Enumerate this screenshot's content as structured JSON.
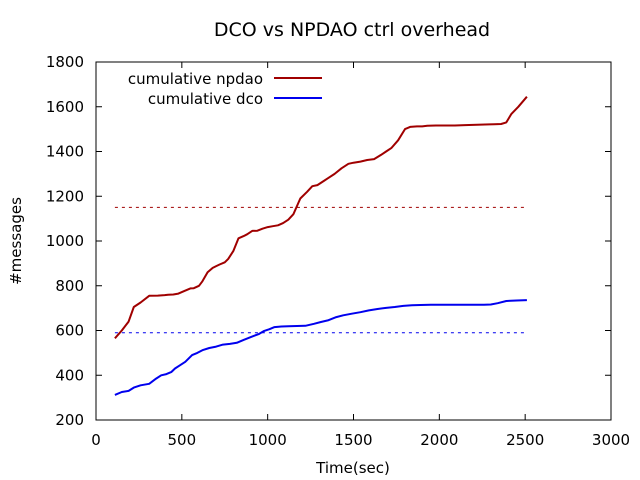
{
  "chart_data": {
    "type": "line",
    "title": "DCO vs NPDAO ctrl overhead",
    "xlabel": "Time(sec)",
    "ylabel": "#messages",
    "xlim": [
      0,
      3000
    ],
    "ylim": [
      200,
      1800
    ],
    "xticks": [
      0,
      500,
      1000,
      1500,
      2000,
      2500,
      3000
    ],
    "yticks": [
      200,
      400,
      600,
      800,
      1000,
      1200,
      1400,
      1600,
      1800
    ],
    "grid": false,
    "legend_position": "top-left",
    "series": [
      {
        "name": "cumulative npdao",
        "color": "#a00000",
        "style": "solid",
        "x": [
          110,
          150,
          190,
          220,
          260,
          310,
          360,
          400,
          420,
          450,
          480,
          510,
          550,
          570,
          600,
          620,
          650,
          680,
          700,
          720,
          750,
          770,
          800,
          830,
          860,
          880,
          910,
          940,
          970,
          1000,
          1030,
          1060,
          1090,
          1120,
          1150,
          1190,
          1230,
          1260,
          1290,
          1330,
          1350,
          1390,
          1430,
          1470,
          1500,
          1540,
          1580,
          1620,
          1660,
          1690,
          1720,
          1760,
          1800,
          1830,
          1870,
          1900,
          1930,
          1980,
          2030,
          2090,
          2150,
          2220,
          2290,
          2320,
          2360,
          2390,
          2420,
          2460,
          2510
        ],
        "y": [
          565,
          600,
          640,
          705,
          725,
          755,
          756,
          758,
          760,
          761,
          765,
          775,
          788,
          789,
          800,
          820,
          860,
          880,
          888,
          895,
          905,
          920,
          955,
          1012,
          1022,
          1030,
          1045,
          1046,
          1055,
          1062,
          1066,
          1070,
          1080,
          1095,
          1120,
          1190,
          1220,
          1245,
          1250,
          1270,
          1280,
          1300,
          1325,
          1345,
          1350,
          1355,
          1362,
          1366,
          1385,
          1400,
          1415,
          1450,
          1500,
          1510,
          1512,
          1512,
          1515,
          1516,
          1516,
          1516,
          1518,
          1520,
          1521,
          1522,
          1523,
          1530,
          1568,
          1600,
          1645
        ]
      },
      {
        "name": "cumulative dco",
        "color": "#0000ee",
        "style": "solid",
        "x": [
          110,
          150,
          190,
          220,
          260,
          310,
          350,
          380,
          410,
          440,
          460,
          490,
          520,
          560,
          590,
          620,
          660,
          700,
          740,
          780,
          820,
          860,
          900,
          950,
          980,
          1010,
          1040,
          1080,
          1120,
          1170,
          1220,
          1270,
          1310,
          1350,
          1400,
          1440,
          1490,
          1540,
          1590,
          1640,
          1690,
          1740,
          1790,
          1840,
          1890,
          1950,
          2000,
          2070,
          2140,
          2200,
          2260,
          2300,
          2340,
          2390,
          2450,
          2510
        ],
        "y": [
          312,
          325,
          330,
          345,
          355,
          362,
          385,
          400,
          405,
          415,
          430,
          445,
          460,
          490,
          500,
          512,
          522,
          528,
          537,
          540,
          545,
          558,
          570,
          585,
          598,
          606,
          615,
          618,
          619,
          620,
          621,
          630,
          638,
          645,
          660,
          668,
          675,
          682,
          690,
          696,
          701,
          705,
          710,
          713,
          714,
          715,
          715,
          715,
          715,
          715,
          715,
          716,
          722,
          732,
          734,
          736
        ]
      },
      {
        "name": "",
        "color": "#a00000",
        "style": "dashed",
        "x": [
          110,
          2510
        ],
        "y": [
          1150,
          1150
        ]
      },
      {
        "name": "",
        "color": "#0000ee",
        "style": "dashed",
        "x": [
          110,
          2510
        ],
        "y": [
          590,
          590
        ]
      }
    ]
  }
}
